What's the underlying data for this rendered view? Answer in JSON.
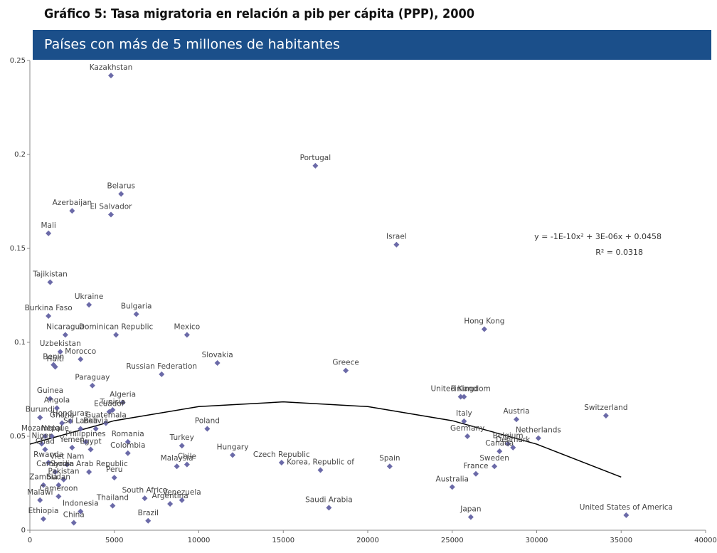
{
  "chart_data": {
    "type": "scatter",
    "title": "Gráfico 5: Tasa migratoria en relación a pib per cápita (PPP), 2000",
    "subtitle": "Países con más de 5 millones de habitantes",
    "annotation": "y = -1E-10x² + 3E-06x + 0.0458",
    "annotation2": "R² = 0.0318",
    "color": "#6b6aa8",
    "labels": [
      "Kazakhstan",
      "Portugal",
      "Belarus",
      "Azerbaijan",
      "El Salvador",
      "Mali",
      "Israel",
      "Tajikistan",
      "Ukraine",
      "Burkina Faso",
      "Bulgaria",
      "Nicaragua",
      "Dominican Republic",
      "Mexico",
      "Hong Kong",
      "Uzbekistan",
      "Morocco",
      "Benin",
      "Haiti",
      "Slovakia",
      "Greece",
      "Russian Federation",
      "Paraguay",
      "Guinea",
      "Algeria",
      "Tunisia",
      "Ecuador",
      "Guatemala",
      "Finland",
      "United Kingdom",
      "Angola",
      "Burundi",
      "Honduras",
      "Sri Lanka",
      "Bolivia",
      "Mozambique",
      "Ghana",
      "Nepal",
      "Niger",
      "Chad",
      "Philippines",
      "Yemen",
      "Egypt",
      "Romania",
      "Colombia",
      "Poland",
      "Turkey",
      "Hungary",
      "Chile",
      "Malaysia",
      "Czech Republic",
      "Korea, Republic of",
      "Spain",
      "Switzerland",
      "Austria",
      "Italy",
      "Germany",
      "Netherlands",
      "Belgium",
      "Canada",
      "Denmark",
      "Sweden",
      "France",
      "Australia",
      "Japan",
      "United States of America",
      "Saudi Arabia",
      "Rwanda",
      "Viet Nam",
      "Cambodia",
      "Pakistan",
      "Zambia",
      "Sudan",
      "Syrian Arab Republic",
      "Peru",
      "Malawi",
      "Cameroon",
      "Thailand",
      "South Africa",
      "Argentina",
      "Venezuela",
      "Brazil",
      "Ethiopia",
      "China",
      "Indonesia"
    ],
    "x": [
      4800,
      16900,
      5400,
      2500,
      4800,
      1100,
      21700,
      1200,
      3500,
      1100,
      6300,
      2100,
      5100,
      9300,
      26900,
      1800,
      3000,
      1400,
      1500,
      11100,
      18700,
      7800,
      3700,
      1200,
      5500,
      4900,
      4700,
      4500,
      25700,
      25500,
      1600,
      600,
      2400,
      3000,
      3900,
      900,
      1900,
      1300,
      700,
      900,
      3300,
      2500,
      3600,
      5800,
      5800,
      10500,
      9000,
      12000,
      9300,
      8700,
      14900,
      17200,
      21300,
      34100,
      28800,
      25700,
      25900,
      30100,
      28300,
      27800,
      28600,
      27500,
      26400,
      25000,
      26100,
      35300,
      17700,
      1100,
      2200,
      1500,
      2000,
      800,
      1700,
      3500,
      5000,
      600,
      1700,
      4900,
      6800,
      8300,
      9000,
      7000,
      800,
      2600,
      3000
    ],
    "y": [
      0.242,
      0.194,
      0.179,
      0.17,
      0.168,
      0.158,
      0.152,
      0.132,
      0.12,
      0.114,
      0.115,
      0.104,
      0.104,
      0.104,
      0.107,
      0.095,
      0.091,
      0.088,
      0.087,
      0.089,
      0.085,
      0.083,
      0.077,
      0.07,
      0.068,
      0.064,
      0.063,
      0.057,
      0.071,
      0.071,
      0.065,
      0.06,
      0.058,
      0.054,
      0.054,
      0.05,
      0.057,
      0.05,
      0.046,
      0.043,
      0.047,
      0.044,
      0.043,
      0.047,
      0.041,
      0.054,
      0.045,
      0.04,
      0.035,
      0.034,
      0.036,
      0.032,
      0.034,
      0.061,
      0.059,
      0.058,
      0.05,
      0.049,
      0.046,
      0.042,
      0.044,
      0.034,
      0.03,
      0.023,
      0.007,
      0.008,
      0.012,
      0.036,
      0.035,
      0.031,
      0.027,
      0.024,
      0.024,
      0.031,
      0.028,
      0.016,
      0.018,
      0.013,
      0.017,
      0.014,
      0.016,
      0.005,
      0.006,
      0.004,
      0.01
    ],
    "trend": {
      "x": [
        0,
        5000,
        10000,
        15000,
        20000,
        25000,
        30000,
        35000
      ],
      "y": [
        0.0458,
        0.0583,
        0.0658,
        0.0683,
        0.0658,
        0.0583,
        0.0458,
        0.0283
      ]
    },
    "xlim": [
      0,
      40000
    ],
    "xticks": [
      0,
      5000,
      10000,
      15000,
      20000,
      25000,
      30000,
      35000,
      40000
    ],
    "ylim": [
      0,
      0.25
    ],
    "yticks": [
      0,
      0.05,
      0.1,
      0.15,
      0.2,
      0.25
    ]
  }
}
